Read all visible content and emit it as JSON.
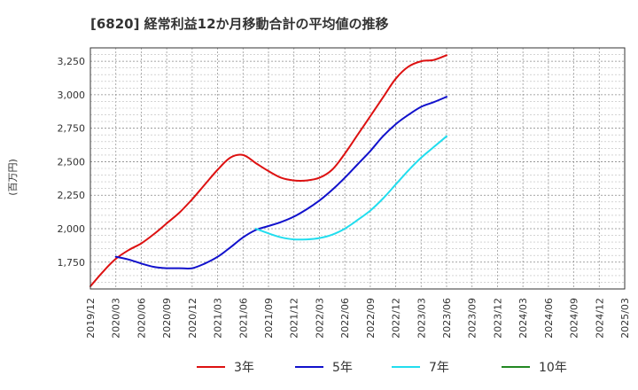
{
  "chart_data": {
    "type": "line",
    "title": "[6820]  経常利益12か月移動合計の平均値の推移",
    "ylabel": "(百万円)",
    "xlabel": "",
    "ylim": [
      1550,
      3350
    ],
    "yticks": [
      1750,
      2000,
      2250,
      2500,
      2750,
      3000,
      3250
    ],
    "ytick_labels": [
      "1,750",
      "2,000",
      "2,250",
      "2,500",
      "2,750",
      "3,000",
      "3,250"
    ],
    "x_tick_labels": [
      "2019/12",
      "2020/03",
      "2020/06",
      "2020/09",
      "2020/12",
      "2021/03",
      "2021/06",
      "2021/09",
      "2021/12",
      "2022/03",
      "2022/06",
      "2022/09",
      "2022/12",
      "2023/03",
      "2023/06",
      "2023/09",
      "2023/12",
      "2024/03",
      "2024/06",
      "2024/09",
      "2024/12",
      "2025/03"
    ],
    "grid": true,
    "legend_position": "bottom",
    "series": [
      {
        "name": "3年",
        "color": "#dd1111",
        "points": [
          [
            0,
            1570
          ],
          [
            1,
            1680
          ],
          [
            2,
            1775
          ],
          [
            3,
            1840
          ],
          [
            4,
            1890
          ],
          [
            5,
            1960
          ],
          [
            6,
            2040
          ],
          [
            7,
            2120
          ],
          [
            8,
            2220
          ],
          [
            9,
            2330
          ],
          [
            10,
            2440
          ],
          [
            11,
            2530
          ],
          [
            12,
            2550
          ],
          [
            13,
            2490
          ],
          [
            14,
            2430
          ],
          [
            15,
            2380
          ],
          [
            16,
            2360
          ],
          [
            17,
            2360
          ],
          [
            18,
            2380
          ],
          [
            19,
            2440
          ],
          [
            20,
            2560
          ],
          [
            21,
            2700
          ],
          [
            22,
            2840
          ],
          [
            23,
            2980
          ],
          [
            24,
            3120
          ],
          [
            25,
            3210
          ],
          [
            26,
            3250
          ],
          [
            27,
            3260
          ],
          [
            28,
            3295
          ]
        ]
      },
      {
        "name": "5年",
        "color": "#1111cc",
        "points": [
          [
            2,
            1790
          ],
          [
            3,
            1770
          ],
          [
            4,
            1740
          ],
          [
            5,
            1715
          ],
          [
            6,
            1705
          ],
          [
            7,
            1705
          ],
          [
            8,
            1705
          ],
          [
            9,
            1740
          ],
          [
            10,
            1790
          ],
          [
            11,
            1860
          ],
          [
            12,
            1935
          ],
          [
            13,
            1990
          ],
          [
            14,
            2020
          ],
          [
            15,
            2050
          ],
          [
            16,
            2090
          ],
          [
            17,
            2145
          ],
          [
            18,
            2210
          ],
          [
            19,
            2290
          ],
          [
            20,
            2380
          ],
          [
            21,
            2480
          ],
          [
            22,
            2580
          ],
          [
            23,
            2690
          ],
          [
            24,
            2780
          ],
          [
            25,
            2850
          ],
          [
            26,
            2910
          ],
          [
            27,
            2945
          ],
          [
            28,
            2985
          ]
        ]
      },
      {
        "name": "7年",
        "color": "#22ddee",
        "points": [
          [
            13,
            2000
          ],
          [
            14,
            1965
          ],
          [
            15,
            1935
          ],
          [
            16,
            1920
          ],
          [
            17,
            1920
          ],
          [
            18,
            1930
          ],
          [
            19,
            1955
          ],
          [
            20,
            2000
          ],
          [
            21,
            2065
          ],
          [
            22,
            2135
          ],
          [
            23,
            2225
          ],
          [
            24,
            2330
          ],
          [
            25,
            2435
          ],
          [
            26,
            2530
          ],
          [
            27,
            2610
          ],
          [
            28,
            2690
          ]
        ]
      },
      {
        "name": "10年",
        "color": "#228822",
        "points": []
      }
    ]
  }
}
